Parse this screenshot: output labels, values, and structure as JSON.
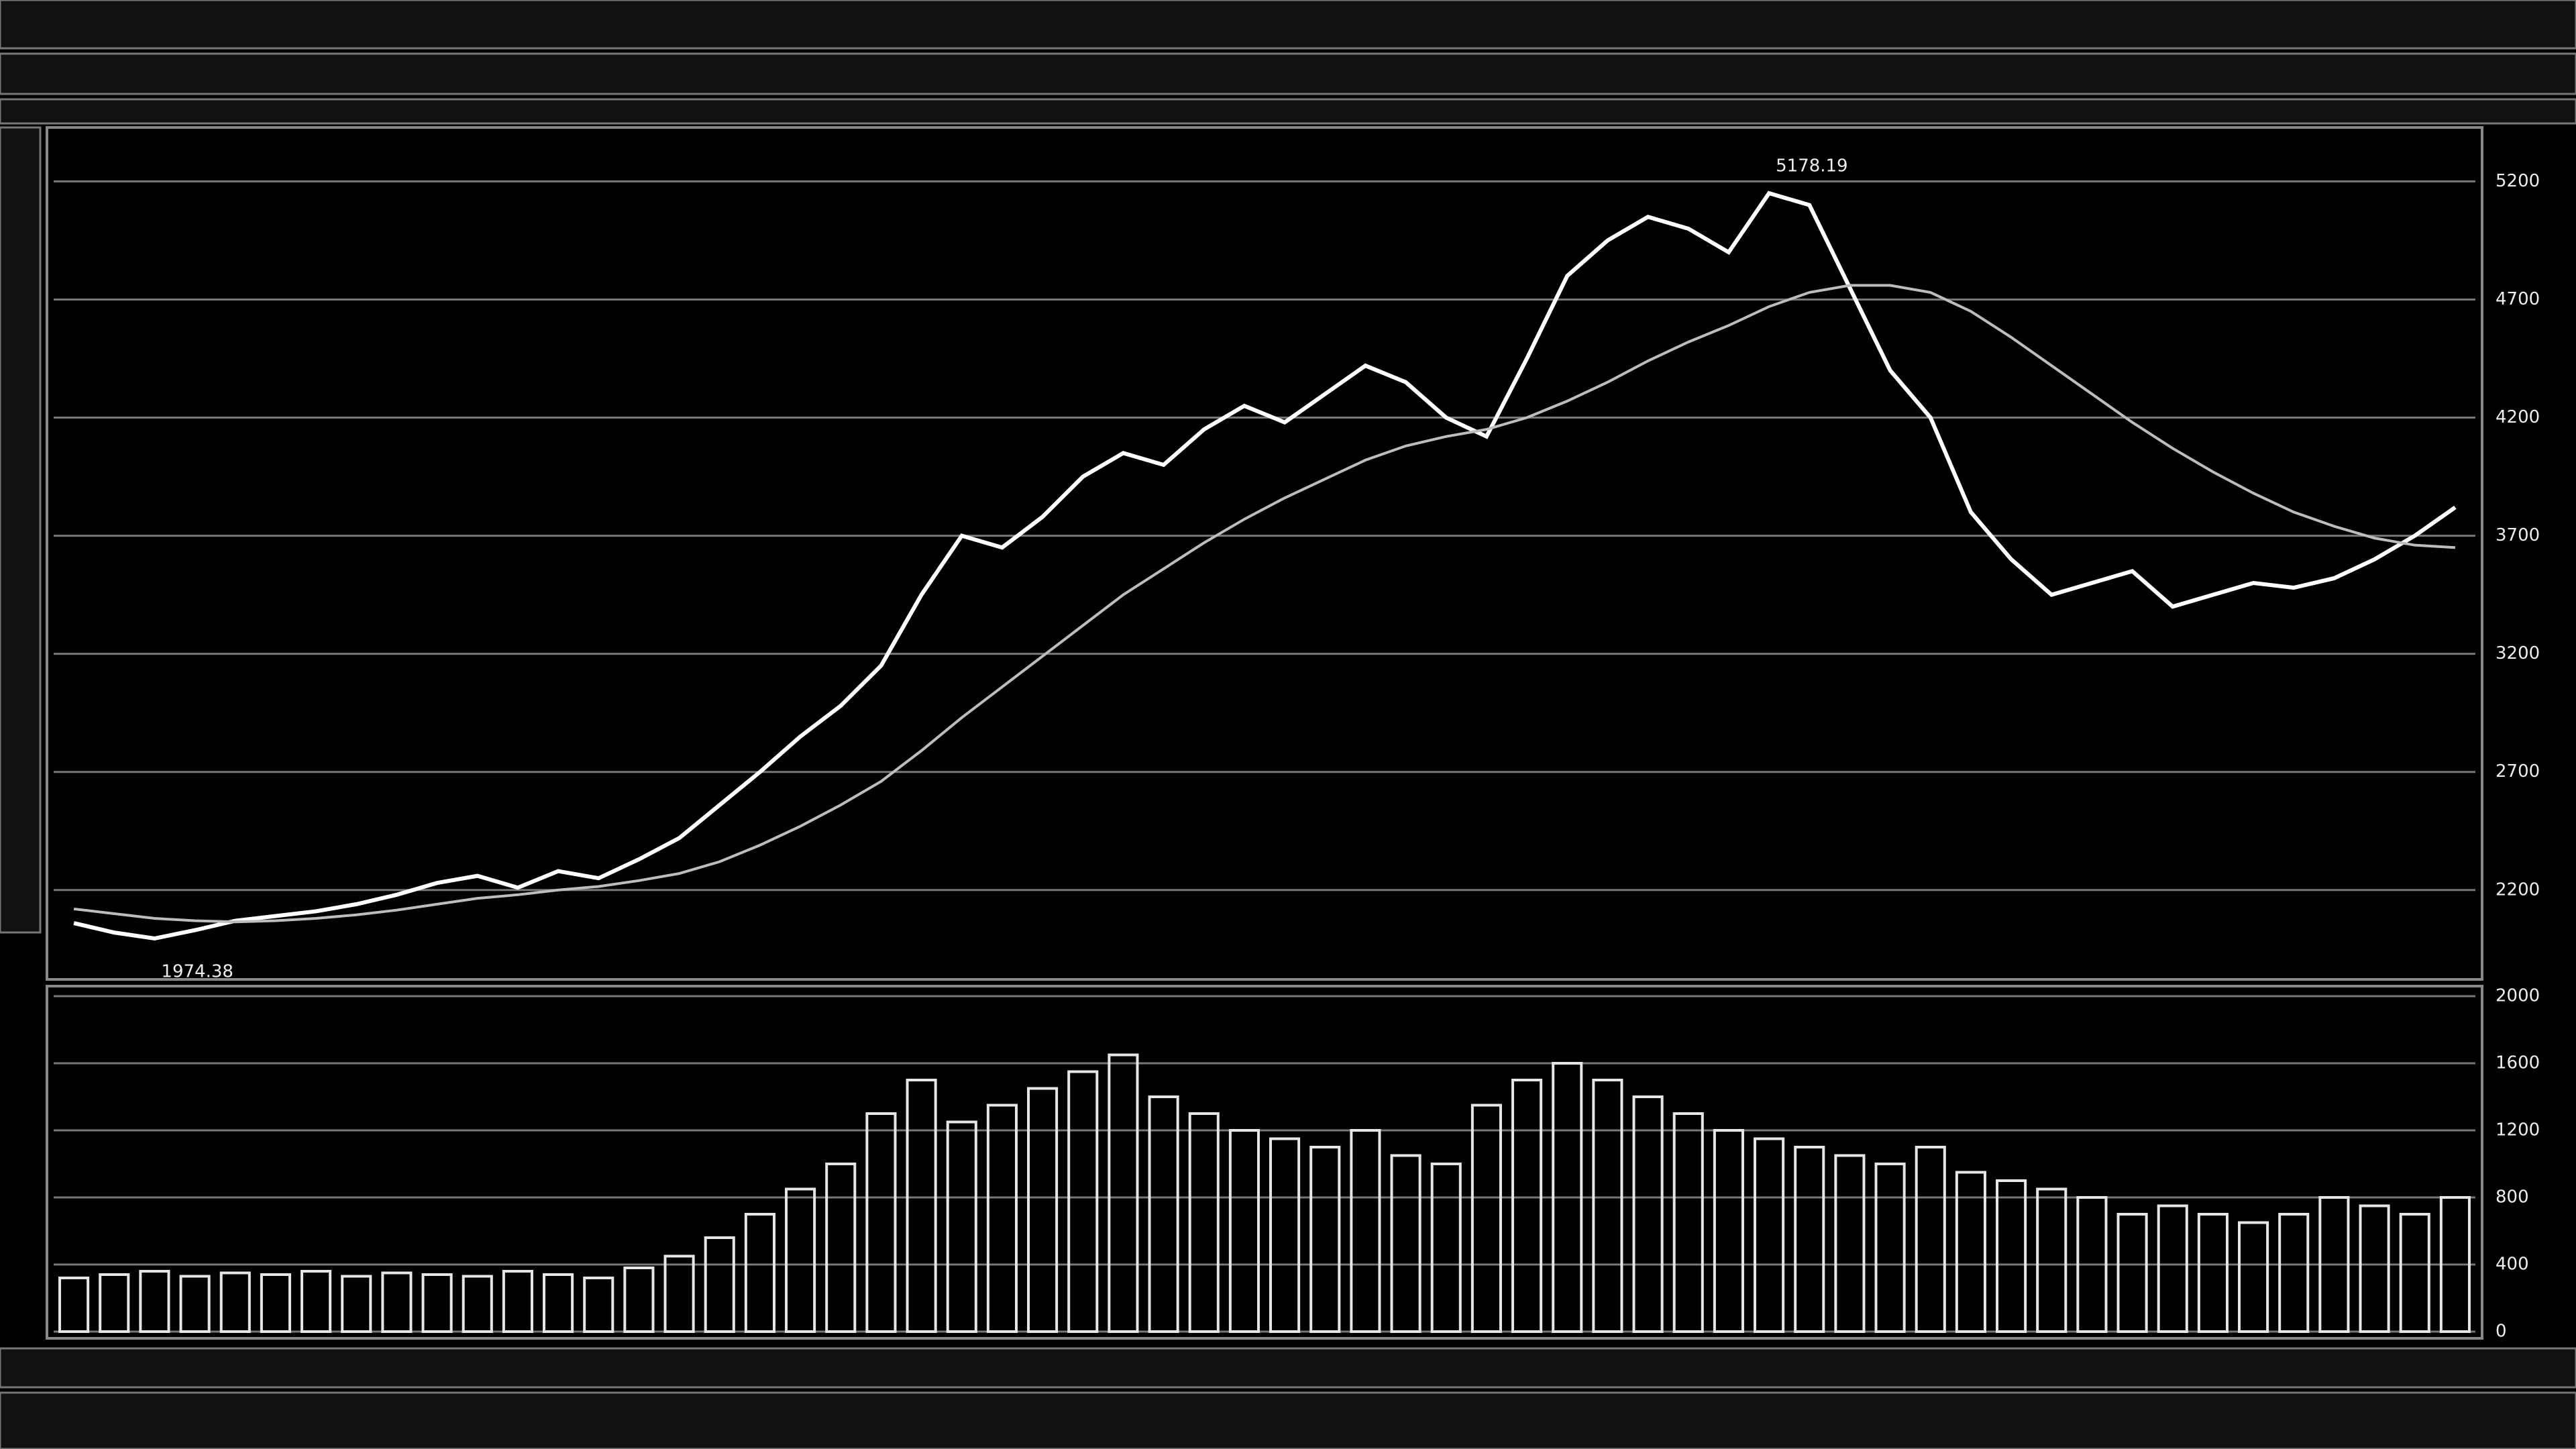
{
  "chart_data": [
    {
      "type": "line",
      "peak_label": "5178.19",
      "low_label": "1974.38",
      "series": [
        {
          "color": "#ffffff",
          "values": [
            2060,
            2020,
            1995,
            2030,
            2070,
            2090,
            2110,
            2140,
            2180,
            2230,
            2260,
            2210,
            2280,
            2250,
            2330,
            2420,
            2560,
            2700,
            2850,
            2980,
            3150,
            3450,
            3700,
            3650,
            3780,
            3950,
            4050,
            4000,
            4150,
            4250,
            4180,
            4300,
            4420,
            4350,
            4200,
            4120,
            4450,
            4800,
            4950,
            5050,
            5000,
            4900,
            5150,
            5100,
            4750,
            4400,
            4200,
            3800,
            3600,
            3450,
            3500,
            3550,
            3400,
            3450,
            3500,
            3480,
            3520,
            3600,
            3700,
            3820
          ]
        },
        {
          "color": "#bdbdbd",
          "values": [
            2120,
            2100,
            2080,
            2070,
            2065,
            2070,
            2080,
            2095,
            2115,
            2140,
            2165,
            2180,
            2200,
            2215,
            2240,
            2270,
            2320,
            2390,
            2470,
            2560,
            2660,
            2790,
            2930,
            3060,
            3190,
            3320,
            3450,
            3560,
            3670,
            3770,
            3860,
            3940,
            4020,
            4080,
            4120,
            4150,
            4200,
            4270,
            4350,
            4440,
            4520,
            4590,
            4670,
            4730,
            4760,
            4760,
            4730,
            4650,
            4540,
            4420,
            4300,
            4180,
            4070,
            3970,
            3880,
            3800,
            3740,
            3690,
            3660,
            3650
          ]
        }
      ],
      "ylim": [
        1850,
        5400
      ],
      "yticks": [
        2200,
        2700,
        3200,
        3700,
        4200,
        4700,
        5200
      ],
      "grid": true
    },
    {
      "type": "bar",
      "color": "#e6e6e6",
      "values": [
        320,
        340,
        360,
        330,
        350,
        340,
        360,
        330,
        350,
        340,
        330,
        360,
        340,
        320,
        380,
        450,
        560,
        700,
        850,
        1000,
        1300,
        1500,
        1250,
        1350,
        1450,
        1550,
        1650,
        1400,
        1300,
        1200,
        1150,
        1100,
        1200,
        1050,
        1000,
        1350,
        1500,
        1600,
        1500,
        1400,
        1300,
        1200,
        1150,
        1100,
        1050,
        1000,
        1100,
        950,
        900,
        850,
        800,
        700,
        750,
        700,
        650,
        700,
        800,
        750,
        700,
        800
      ],
      "ylim": [
        0,
        2000
      ],
      "yticks": [
        0,
        400,
        800,
        1200,
        1600,
        2000
      ],
      "grid": true
    }
  ]
}
